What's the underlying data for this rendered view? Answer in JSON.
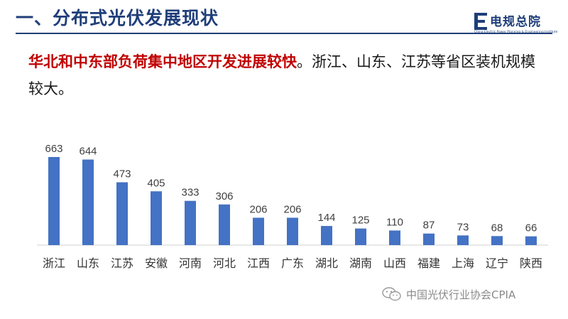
{
  "title": "一、分布式光伏发展现状",
  "logo": {
    "name": "电规总院",
    "subtitle": "China Electric Power Planning & Engineering Institute"
  },
  "headline": {
    "highlight": "华北和中东部负荷集中地区开发进展较快",
    "rest": "。浙江、山东、江苏等省区装机规模较大。"
  },
  "watermark": {
    "text": "中国光伏行业协会CPIA",
    "icon": "wechat-icon"
  },
  "colors": {
    "title": "#1f3e79",
    "highlight": "#c00000",
    "bar": "#4472c4"
  },
  "chart_data": {
    "type": "bar",
    "categories": [
      "浙江",
      "山东",
      "江苏",
      "安徽",
      "河南",
      "河北",
      "江西",
      "广东",
      "湖北",
      "湖南",
      "山西",
      "福建",
      "上海",
      "辽宁",
      "陕西"
    ],
    "values": [
      663,
      644,
      473,
      405,
      333,
      306,
      206,
      206,
      144,
      125,
      110,
      87,
      73,
      68,
      66
    ],
    "data_labels": [
      "663",
      "644",
      "473",
      "405",
      "333",
      "306",
      "206",
      "206",
      "144",
      "125",
      "110",
      "87",
      "73",
      "68",
      "66"
    ],
    "ylim": [
      0,
      663
    ],
    "grid": false,
    "legend": "none"
  }
}
